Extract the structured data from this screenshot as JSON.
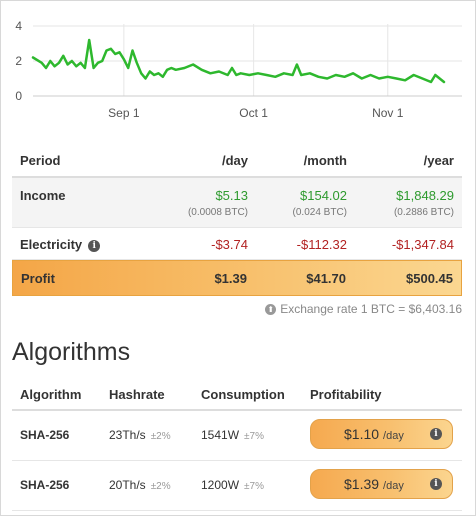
{
  "chart_data": {
    "type": "line",
    "color": "#2eb82e",
    "x_ticks": [
      "Sep 1",
      "Oct 1",
      "Nov 1"
    ],
    "y_ticks": [
      "0",
      "2",
      "4"
    ],
    "ylim": [
      0,
      4
    ],
    "grid": true,
    "x_start": "2018-08-11",
    "x_end": "2018-11-14",
    "series": [
      {
        "x": [
          "2018-08-11",
          "2018-08-13",
          "2018-08-14",
          "2018-08-15",
          "2018-08-16",
          "2018-08-17",
          "2018-08-18",
          "2018-08-19",
          "2018-08-20",
          "2018-08-21",
          "2018-08-22",
          "2018-08-23",
          "2018-08-24",
          "2018-08-25",
          "2018-08-26",
          "2018-08-27",
          "2018-08-28",
          "2018-08-29",
          "2018-08-30",
          "2018-08-31",
          "2018-09-01",
          "2018-09-02",
          "2018-09-03",
          "2018-09-04",
          "2018-09-05",
          "2018-09-06",
          "2018-09-07",
          "2018-09-08",
          "2018-09-09",
          "2018-09-10",
          "2018-09-11",
          "2018-09-12",
          "2018-09-13",
          "2018-09-15",
          "2018-09-17",
          "2018-09-19",
          "2018-09-21",
          "2018-09-23",
          "2018-09-25",
          "2018-09-26",
          "2018-09-27",
          "2018-09-28",
          "2018-09-30",
          "2018-10-02",
          "2018-10-04",
          "2018-10-06",
          "2018-10-08",
          "2018-10-10",
          "2018-10-11",
          "2018-10-12",
          "2018-10-14",
          "2018-10-16",
          "2018-10-18",
          "2018-10-20",
          "2018-10-22",
          "2018-10-24",
          "2018-10-26",
          "2018-10-28",
          "2018-10-30",
          "2018-11-01",
          "2018-11-03",
          "2018-11-05",
          "2018-11-07",
          "2018-11-09",
          "2018-11-11",
          "2018-11-12",
          "2018-11-14"
        ],
        "y": [
          2.2,
          1.9,
          1.6,
          2.0,
          1.7,
          1.9,
          2.3,
          1.8,
          2.0,
          1.7,
          1.9,
          1.6,
          3.2,
          1.6,
          1.9,
          2.0,
          2.6,
          2.7,
          2.4,
          2.5,
          2.1,
          1.6,
          2.6,
          1.9,
          1.3,
          1.0,
          1.4,
          1.2,
          1.3,
          1.1,
          1.5,
          1.6,
          1.5,
          1.6,
          1.8,
          1.5,
          1.3,
          1.4,
          1.2,
          1.6,
          1.2,
          1.3,
          1.2,
          1.3,
          1.2,
          1.1,
          1.3,
          1.2,
          1.8,
          1.2,
          1.3,
          1.1,
          1.0,
          1.2,
          1.1,
          1.3,
          1.0,
          1.2,
          1.0,
          1.1,
          1.0,
          0.9,
          1.2,
          1.0,
          0.8,
          1.2,
          0.8
        ]
      }
    ]
  },
  "profit_table": {
    "headers": {
      "period": "Period",
      "day": "/day",
      "month": "/month",
      "year": "/year"
    },
    "income": {
      "label": "Income",
      "day": "$5.13",
      "day_btc": "(0.0008 BTC)",
      "month": "$154.02",
      "month_btc": "(0.024 BTC)",
      "year": "$1,848.29",
      "year_btc": "(0.2886 BTC)"
    },
    "electricity": {
      "label": "Electricity",
      "info": "i",
      "day": "-$3.74",
      "month": "-$112.32",
      "year": "-$1,347.84"
    },
    "profit": {
      "label": "Profit",
      "day": "$1.39",
      "month": "$41.70",
      "year": "$500.45"
    }
  },
  "exchange_rate": "Exchange rate 1 BTC = $6,403.16",
  "algorithms": {
    "title": "Algorithms",
    "headers": {
      "algorithm": "Algorithm",
      "hashrate": "Hashrate",
      "consumption": "Consumption",
      "profitability": "Profitability"
    },
    "rows": [
      {
        "algorithm": "SHA-256",
        "hashrate": "23Th/s",
        "hashrate_var": "±2%",
        "consumption": "1541W",
        "consumption_var": "±7%",
        "profit": "$1.10",
        "per": "/day"
      },
      {
        "algorithm": "SHA-256",
        "hashrate": "20Th/s",
        "hashrate_var": "±2%",
        "consumption": "1200W",
        "consumption_var": "±7%",
        "profit": "$1.39",
        "per": "/day"
      }
    ]
  },
  "colors": {
    "income": "#2e9a2e",
    "electricity": "#b22222",
    "profit_gradient": "#f4a647"
  }
}
